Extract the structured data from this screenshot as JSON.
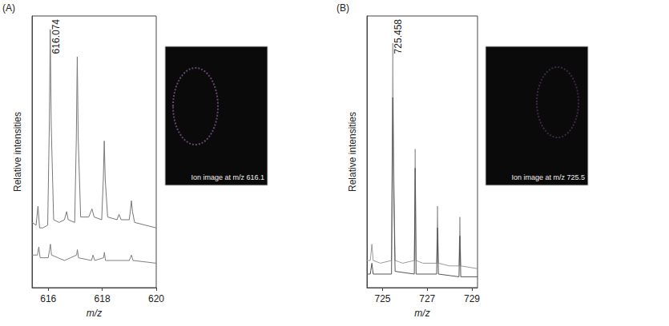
{
  "chart_data": [
    {
      "type": "line",
      "panel_label": "(A)",
      "x_label": "m/z",
      "y_label": "Relative intensities",
      "xlim": [
        615.4,
        620
      ],
      "xticks": [
        616,
        618,
        620
      ],
      "ylim": [
        0,
        1
      ],
      "tick_labels": "x",
      "grid": false,
      "annotations": [
        {
          "x": 616.074,
          "text": "616.074"
        }
      ],
      "image_label": "Ion image at m/z 616.1",
      "series": [
        {
          "color": "#777777",
          "values": [
            [
              615.4,
              0.24
            ],
            [
              615.55,
              0.23
            ],
            [
              615.62,
              0.3
            ],
            [
              615.68,
              0.22
            ],
            [
              615.8,
              0.22
            ],
            [
              615.98,
              0.23
            ],
            [
              616.04,
              0.6
            ],
            [
              616.074,
              0.95
            ],
            [
              616.11,
              0.6
            ],
            [
              616.2,
              0.25
            ],
            [
              616.4,
              0.24
            ],
            [
              616.6,
              0.25
            ],
            [
              616.68,
              0.28
            ],
            [
              616.74,
              0.25
            ],
            [
              616.98,
              0.24
            ],
            [
              617.04,
              0.55
            ],
            [
              617.075,
              0.85
            ],
            [
              617.11,
              0.55
            ],
            [
              617.2,
              0.26
            ],
            [
              617.5,
              0.26
            ],
            [
              617.62,
              0.29
            ],
            [
              617.7,
              0.26
            ],
            [
              617.98,
              0.25
            ],
            [
              618.04,
              0.4
            ],
            [
              618.075,
              0.54
            ],
            [
              618.11,
              0.4
            ],
            [
              618.2,
              0.26
            ],
            [
              618.55,
              0.25
            ],
            [
              618.62,
              0.27
            ],
            [
              618.7,
              0.25
            ],
            [
              619.0,
              0.25
            ],
            [
              619.05,
              0.29
            ],
            [
              619.08,
              0.32
            ],
            [
              619.12,
              0.28
            ],
            [
              619.2,
              0.24
            ],
            [
              619.6,
              0.23
            ],
            [
              620,
              0.22
            ]
          ]
        },
        {
          "color": "#7f7f7f",
          "values": [
            [
              615.4,
              0.12
            ],
            [
              615.6,
              0.12
            ],
            [
              615.65,
              0.15
            ],
            [
              615.7,
              0.11
            ],
            [
              616.0,
              0.11
            ],
            [
              616.05,
              0.14
            ],
            [
              616.08,
              0.16
            ],
            [
              616.12,
              0.12
            ],
            [
              616.6,
              0.1
            ],
            [
              617.05,
              0.12
            ],
            [
              617.08,
              0.14
            ],
            [
              617.12,
              0.11
            ],
            [
              617.6,
              0.1
            ],
            [
              617.66,
              0.12
            ],
            [
              617.72,
              0.1
            ],
            [
              618.05,
              0.11
            ],
            [
              618.08,
              0.13
            ],
            [
              618.12,
              0.1
            ],
            [
              619.0,
              0.1
            ],
            [
              619.08,
              0.12
            ],
            [
              619.14,
              0.1
            ],
            [
              620,
              0.09
            ]
          ]
        }
      ]
    },
    {
      "type": "line",
      "panel_label": "(B)",
      "x_label": "m/z",
      "y_label": "Relative intensities",
      "xlim": [
        724.3,
        729.25
      ],
      "xticks": [
        725,
        727,
        729
      ],
      "ylim": [
        0,
        1
      ],
      "tick_labels": "x",
      "grid": false,
      "annotations": [
        {
          "x": 725.458,
          "text": "725.458"
        }
      ],
      "image_label": "Ion image at m/z 725.5",
      "series": [
        {
          "color": "#9a9a9a",
          "values": [
            [
              724.3,
              0.1
            ],
            [
              724.45,
              0.1
            ],
            [
              724.52,
              0.16
            ],
            [
              724.58,
              0.1
            ],
            [
              724.9,
              0.09
            ],
            [
              725.4,
              0.1
            ],
            [
              725.43,
              0.5
            ],
            [
              725.458,
              0.9
            ],
            [
              725.49,
              0.5
            ],
            [
              725.56,
              0.1
            ],
            [
              725.9,
              0.09
            ],
            [
              726.42,
              0.1
            ],
            [
              726.46,
              0.51
            ],
            [
              726.5,
              0.1
            ],
            [
              726.8,
              0.09
            ],
            [
              727.42,
              0.09
            ],
            [
              727.46,
              0.3
            ],
            [
              727.5,
              0.09
            ],
            [
              728.0,
              0.08
            ],
            [
              728.42,
              0.08
            ],
            [
              728.46,
              0.26
            ],
            [
              728.5,
              0.08
            ],
            [
              729.25,
              0.07
            ]
          ]
        },
        {
          "color": "#555555",
          "values": [
            [
              724.3,
              0.05
            ],
            [
              724.45,
              0.05
            ],
            [
              724.52,
              0.09
            ],
            [
              724.58,
              0.05
            ],
            [
              725.4,
              0.05
            ],
            [
              725.43,
              0.4
            ],
            [
              725.458,
              0.7
            ],
            [
              725.49,
              0.4
            ],
            [
              725.56,
              0.06
            ],
            [
              726.42,
              0.05
            ],
            [
              726.46,
              0.44
            ],
            [
              726.5,
              0.05
            ],
            [
              727.42,
              0.05
            ],
            [
              727.46,
              0.22
            ],
            [
              727.5,
              0.05
            ],
            [
              728.42,
              0.04
            ],
            [
              728.46,
              0.19
            ],
            [
              728.5,
              0.04
            ],
            [
              729.25,
              0.04
            ]
          ]
        }
      ]
    }
  ]
}
